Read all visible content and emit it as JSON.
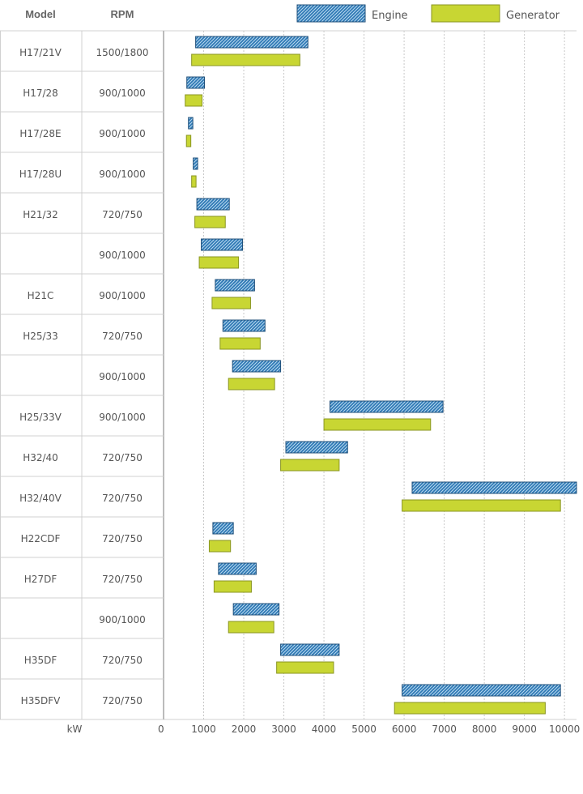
{
  "chart_data": {
    "type": "bar",
    "orientation": "horizontal",
    "subtype": "range",
    "headers": {
      "model": "Model",
      "rpm": "RPM"
    },
    "x_unit": "kW",
    "xlim": [
      0,
      10300
    ],
    "x_ticks": [
      0,
      1000,
      2000,
      3000,
      4000,
      5000,
      6000,
      7000,
      8000,
      9000,
      10000
    ],
    "grid": true,
    "legend_position": "top-right",
    "series": [
      {
        "name": "Engine",
        "color": "#2e78b4",
        "pattern": "hatched"
      },
      {
        "name": "Generator",
        "color": "#c8d633",
        "pattern": "solid"
      }
    ],
    "rows": [
      {
        "model": "H17/21V",
        "rpm": "1500/1800",
        "engine": [
          800,
          3600
        ],
        "generator": [
          700,
          3400
        ]
      },
      {
        "model": "H17/28",
        "rpm": "900/1000",
        "engine": [
          580,
          1020
        ],
        "generator": [
          540,
          960
        ]
      },
      {
        "model": "H17/28E",
        "rpm": "900/1000",
        "engine": [
          620,
          730
        ],
        "generator": [
          570,
          680
        ]
      },
      {
        "model": "H17/28U",
        "rpm": "900/1000",
        "engine": [
          740,
          850
        ],
        "generator": [
          700,
          810
        ]
      },
      {
        "model": "H21/32",
        "rpm": "720/750",
        "engine": [
          830,
          1640
        ],
        "generator": [
          780,
          1540
        ]
      },
      {
        "model": "",
        "rpm": "900/1000",
        "engine": [
          940,
          1970
        ],
        "generator": [
          890,
          1870
        ]
      },
      {
        "model": "H21C",
        "rpm": "900/1000",
        "engine": [
          1290,
          2270
        ],
        "generator": [
          1210,
          2170
        ]
      },
      {
        "model": "H25/33",
        "rpm": "720/750",
        "engine": [
          1480,
          2530
        ],
        "generator": [
          1410,
          2410
        ]
      },
      {
        "model": "",
        "rpm": "900/1000",
        "engine": [
          1720,
          2920
        ],
        "generator": [
          1620,
          2770
        ]
      },
      {
        "model": "H25/33V",
        "rpm": "900/1000",
        "engine": [
          4150,
          6970
        ],
        "generator": [
          4000,
          6660
        ]
      },
      {
        "model": "H32/40",
        "rpm": "720/750",
        "engine": [
          3050,
          4590
        ],
        "generator": [
          2920,
          4380
        ]
      },
      {
        "model": "H32/40V",
        "rpm": "720/750",
        "engine": [
          6200,
          10300
        ],
        "generator": [
          5950,
          9900
        ]
      },
      {
        "model": "H22CDF",
        "rpm": "720/750",
        "engine": [
          1230,
          1740
        ],
        "generator": [
          1140,
          1670
        ]
      },
      {
        "model": "H27DF",
        "rpm": "720/750",
        "engine": [
          1370,
          2310
        ],
        "generator": [
          1260,
          2190
        ]
      },
      {
        "model": "",
        "rpm": "900/1000",
        "engine": [
          1740,
          2880
        ],
        "generator": [
          1620,
          2750
        ]
      },
      {
        "model": "H35DF",
        "rpm": "720/750",
        "engine": [
          2920,
          4380
        ],
        "generator": [
          2820,
          4240
        ]
      },
      {
        "model": "H35DFV",
        "rpm": "720/750",
        "engine": [
          5950,
          9900
        ],
        "generator": [
          5760,
          9520
        ]
      }
    ]
  }
}
